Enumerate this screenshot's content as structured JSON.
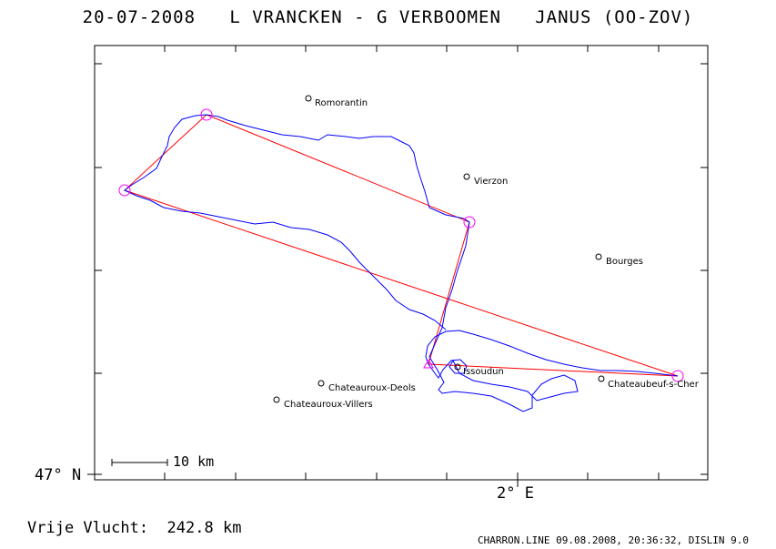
{
  "title": "20-07-2008   L VRANCKEN - G VERBOOMEN   JANUS (OO-ZOV)",
  "axis": {
    "lat_label": "47° N",
    "lon_label": "2° E"
  },
  "scale_bar": {
    "label": "10 km"
  },
  "distance": {
    "label": "Vrije Vlucht:",
    "value": "242.8 km"
  },
  "footer": "CHARRON.LINE 09.08.2008, 20:36:32, DISLIN 9.0",
  "towns": [
    {
      "name": "Romorantin"
    },
    {
      "name": "Vierzon"
    },
    {
      "name": "Bourges"
    },
    {
      "name": "Issoudun"
    },
    {
      "name": "Chateaubeuf-s-Cher"
    },
    {
      "name": "Chateauroux-Deols"
    },
    {
      "name": "Chateauroux-Villers"
    }
  ],
  "colors": {
    "track": "#0000ff",
    "task": "#ff0000",
    "turnpoint": "#ff00ff",
    "frame": "#000000"
  }
}
